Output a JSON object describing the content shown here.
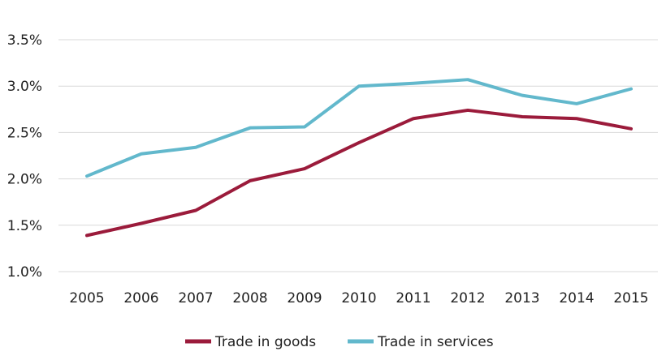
{
  "chart_data": {
    "type": "line",
    "title": "",
    "xlabel": "",
    "ylabel": "",
    "x": [
      "2005",
      "2006",
      "2007",
      "2008",
      "2009",
      "2010",
      "2011",
      "2012",
      "2013",
      "2014",
      "2015"
    ],
    "y_ticks": [
      "1.0%",
      "1.5%",
      "2.0%",
      "2.5%",
      "3.0%",
      "3.5%"
    ],
    "ylim": [
      1.0,
      3.5
    ],
    "grid": "horizontal",
    "legend_position": "bottom-center",
    "series": [
      {
        "name": "Trade in goods",
        "color": "#9b1b3b",
        "values": [
          1.39,
          1.52,
          1.66,
          1.98,
          2.11,
          2.39,
          2.65,
          2.74,
          2.67,
          2.65,
          2.54
        ]
      },
      {
        "name": "Trade in services",
        "color": "#62b8cc",
        "values": [
          2.03,
          2.27,
          2.34,
          2.55,
          2.56,
          3.0,
          3.03,
          3.07,
          2.9,
          2.81,
          2.97
        ]
      }
    ]
  }
}
